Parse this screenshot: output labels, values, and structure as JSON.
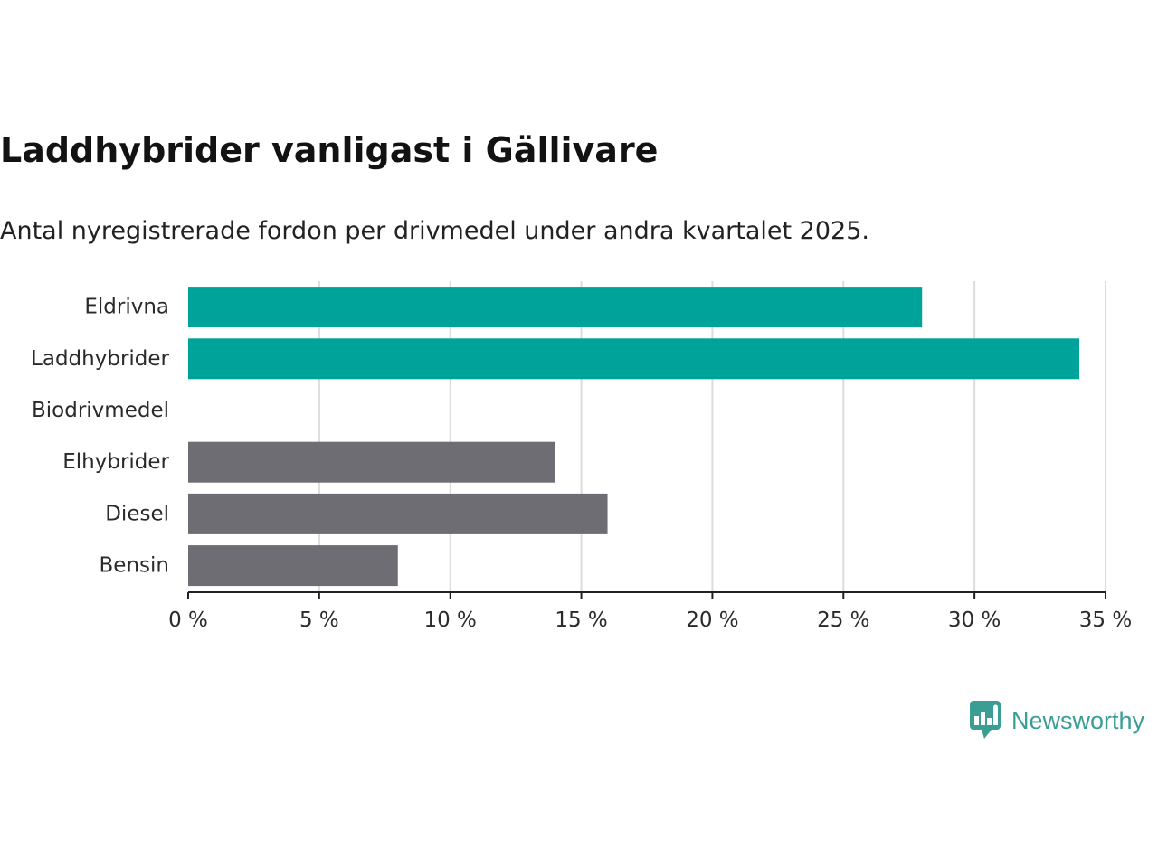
{
  "header": {
    "title": "Laddhybrider vanligast i Gällivare",
    "subtitle": "Antal nyregistrerade fordon per drivmedel under andra kvartalet 2025."
  },
  "brand": {
    "name": "Newsworthy",
    "icon": "newsworthy-logo-icon",
    "color": "#3a9e95"
  },
  "chart_data": {
    "type": "bar",
    "orientation": "horizontal",
    "categories": [
      "Eldrivna",
      "Laddhybrider",
      "Biodrivmedel",
      "Elhybrider",
      "Diesel",
      "Bensin"
    ],
    "values": [
      28,
      34,
      0,
      14,
      16,
      8
    ],
    "colors": [
      "#00a39a",
      "#00a39a",
      "#00a39a",
      "#6e6d73",
      "#6e6d73",
      "#6e6d73"
    ],
    "xlim": [
      0,
      35
    ],
    "xticks": [
      0,
      5,
      10,
      15,
      20,
      25,
      30,
      35
    ],
    "tick_labels": [
      "0 %",
      "5 %",
      "10 %",
      "15 %",
      "20 %",
      "25 %",
      "30 %",
      "35 %"
    ],
    "grid": true,
    "legend": "none",
    "xlabel": "",
    "ylabel": ""
  }
}
